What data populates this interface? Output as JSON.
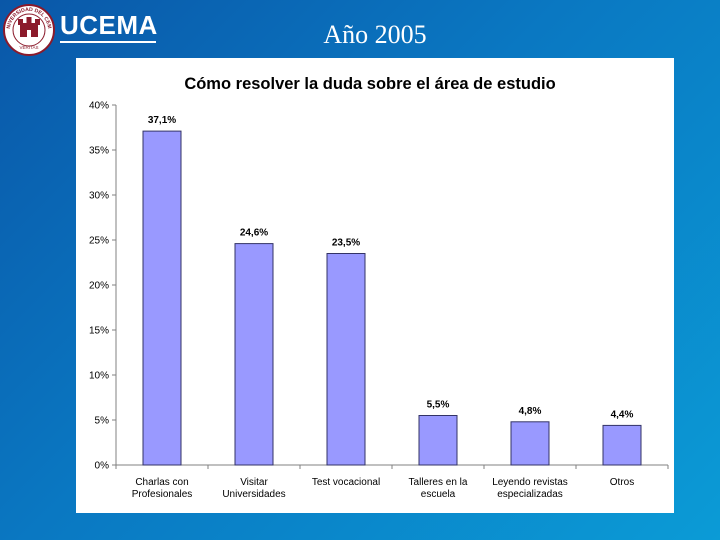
{
  "header": {
    "logo_text": "UCEMA",
    "seal_text": "UNIVERSIDAD DEL CEMA",
    "seal_motto": "VERITAS",
    "slide_title": "Año 2005"
  },
  "colors": {
    "bar_fill": "#9999ff",
    "bar_stroke": "#333366",
    "background": "#0a78c2",
    "seal": "#8b1a2b"
  },
  "chart_data": {
    "type": "bar",
    "title": "Cómo resolver la duda sobre el área de estudio",
    "categories": [
      [
        "Charlas con",
        "Profesionales"
      ],
      [
        "Visitar",
        "Universidades"
      ],
      [
        "Test vocacional"
      ],
      [
        "Talleres en la",
        "escuela"
      ],
      [
        "Leyendo revistas",
        "especializadas"
      ],
      [
        "Otros"
      ]
    ],
    "values": [
      37.1,
      24.6,
      23.5,
      5.5,
      4.8,
      4.4
    ],
    "data_labels": [
      "37,1%",
      "24,6%",
      "23,5%",
      "5,5%",
      "4,8%",
      "4,4%"
    ],
    "ylim": [
      0,
      40
    ],
    "yticks": [
      0,
      5,
      10,
      15,
      20,
      25,
      30,
      35,
      40
    ],
    "ytick_labels": [
      "0%",
      "5%",
      "10%",
      "15%",
      "20%",
      "25%",
      "30%",
      "35%",
      "40%"
    ],
    "xlabel": "",
    "ylabel": "",
    "grid": false,
    "legend": "none"
  }
}
